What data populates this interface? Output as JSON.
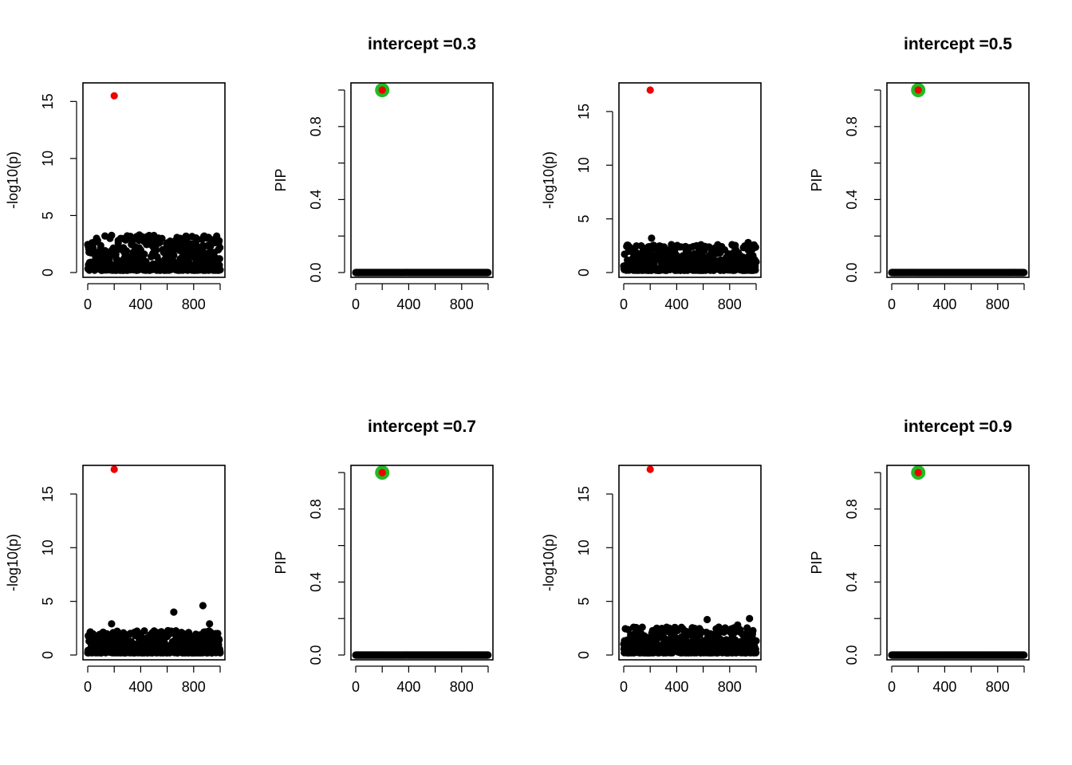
{
  "colors": {
    "background": "#ffffff",
    "points": "#000000",
    "highlight": "#ee0000",
    "pip_highlight_ring": "#22bb22"
  },
  "chart_data": [
    {
      "type": "scatter",
      "title": "",
      "xlabel": "",
      "ylabel": "-log10(p)",
      "xlim": [
        0,
        1000
      ],
      "ylim": [
        0,
        16
      ],
      "xticks": [
        "0",
        "400",
        "800"
      ],
      "yticks": [
        "0",
        "5",
        "10",
        "15"
      ],
      "highlight": {
        "x": 200,
        "y": 15.5
      },
      "background_range": [
        0.2,
        3.3
      ],
      "outliers": [
        [
          40,
          2.6
        ],
        [
          230,
          2.6
        ],
        [
          700,
          3.0
        ],
        [
          830,
          2.9
        ],
        [
          880,
          3.2
        ],
        [
          960,
          2.9
        ],
        [
          600,
          2.6
        ]
      ]
    },
    {
      "type": "scatter",
      "title": "intercept =0.3",
      "xlabel": "",
      "ylabel": "PIP",
      "xlim": [
        0,
        1000
      ],
      "ylim": [
        0,
        1
      ],
      "xticks": [
        "0",
        "400",
        "800"
      ],
      "yticks": [
        "0.0",
        "0.4",
        "0.8"
      ],
      "highlight": {
        "x": 200,
        "y": 1.0,
        "ring": true
      },
      "background_value": 0.0
    },
    {
      "type": "scatter",
      "title": "",
      "xlabel": "",
      "ylabel": "-log10(p)",
      "xlim": [
        0,
        1000
      ],
      "ylim": [
        0,
        17
      ],
      "xticks": [
        "0",
        "400",
        "800"
      ],
      "yticks": [
        "0",
        "5",
        "10",
        "15"
      ],
      "highlight": {
        "x": 200,
        "y": 17.0
      },
      "background_range": [
        0.2,
        2.6
      ],
      "outliers": [
        [
          210,
          3.2
        ],
        [
          940,
          2.8
        ],
        [
          550,
          2.5
        ],
        [
          360,
          2.6
        ]
      ]
    },
    {
      "type": "scatter",
      "title": "intercept =0.5",
      "xlabel": "",
      "ylabel": "PIP",
      "xlim": [
        0,
        1000
      ],
      "ylim": [
        0,
        1
      ],
      "xticks": [
        "0",
        "400",
        "800"
      ],
      "yticks": [
        "0.0",
        "0.4",
        "0.8"
      ],
      "highlight": {
        "x": 200,
        "y": 1.0,
        "ring": true
      },
      "background_value": 0.0
    },
    {
      "type": "scatter",
      "title": "",
      "xlabel": "",
      "ylabel": "-log10(p)",
      "xlim": [
        0,
        1000
      ],
      "ylim": [
        0,
        17
      ],
      "xticks": [
        "0",
        "400",
        "800"
      ],
      "yticks": [
        "0",
        "5",
        "10",
        "15"
      ],
      "highlight": {
        "x": 200,
        "y": 17.3
      },
      "background_range": [
        0.2,
        2.3
      ],
      "outliers": [
        [
          650,
          4.0
        ],
        [
          870,
          4.6
        ],
        [
          920,
          2.9
        ],
        [
          180,
          2.9
        ]
      ]
    },
    {
      "type": "scatter",
      "title": "intercept =0.7",
      "xlabel": "",
      "ylabel": "PIP",
      "xlim": [
        0,
        1000
      ],
      "ylim": [
        0,
        1
      ],
      "xticks": [
        "0",
        "400",
        "800"
      ],
      "yticks": [
        "0.0",
        "0.4",
        "0.8"
      ],
      "highlight": {
        "x": 200,
        "y": 1.0,
        "ring": true
      },
      "background_value": 0.0
    },
    {
      "type": "scatter",
      "title": "",
      "xlabel": "",
      "ylabel": "-log10(p)",
      "xlim": [
        0,
        1000
      ],
      "ylim": [
        0,
        17
      ],
      "xticks": [
        "0",
        "400",
        "800"
      ],
      "yticks": [
        "0",
        "5",
        "10",
        "15"
      ],
      "highlight": {
        "x": 200,
        "y": 17.3
      },
      "background_range": [
        0.2,
        2.6
      ],
      "outliers": [
        [
          630,
          3.3
        ],
        [
          950,
          3.4
        ],
        [
          860,
          2.8
        ],
        [
          250,
          2.5
        ]
      ]
    },
    {
      "type": "scatter",
      "title": "intercept =0.9",
      "xlabel": "",
      "ylabel": "PIP",
      "xlim": [
        0,
        1000
      ],
      "ylim": [
        0,
        1
      ],
      "xticks": [
        "0",
        "400",
        "800"
      ],
      "yticks": [
        "0.0",
        "0.4",
        "0.8"
      ],
      "highlight": {
        "x": 200,
        "y": 1.0,
        "ring": true
      },
      "background_value": 0.0
    }
  ]
}
